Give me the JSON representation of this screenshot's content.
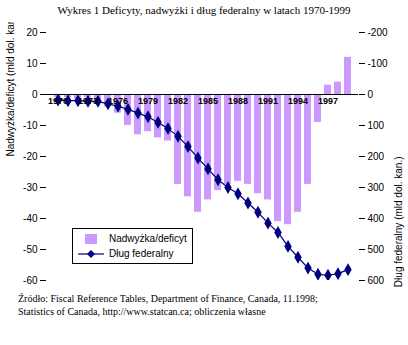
{
  "chart_data": {
    "type": "bar",
    "title": "Wykres 1 Deficyty, nadwyżki i dług federalny w latach 1970-1999",
    "y_label": "Nadwyżka/deficyt (mld dol. kan.)",
    "y2_label": "Dług federalny (mld dol. kan.)",
    "caption": [
      "Źródło: Fiscal Reference Tables, Department of Finance, Canada, 11.1998;",
      "Statistics of Canada, http://www.statcan.ca; obliczenia własne"
    ],
    "categories": [
      "1970",
      null,
      null,
      "1973",
      null,
      null,
      "1976",
      null,
      null,
      "1979",
      null,
      null,
      "1982",
      null,
      null,
      "1985",
      null,
      null,
      "1988",
      null,
      null,
      "1991",
      null,
      null,
      "1994",
      null,
      null,
      "1997",
      null,
      null
    ],
    "series": [
      {
        "name": "Nadwyżka/deficyt",
        "type": "bar",
        "color": "#cc99ff",
        "values": [
          -1,
          -1,
          -1.5,
          -1,
          -2,
          -4,
          -6,
          -10,
          -13,
          -12,
          -14,
          -15,
          -29,
          -33,
          -38,
          -34,
          -31,
          -29,
          -28,
          -29,
          -32,
          -34,
          -41,
          -42,
          -38,
          -29,
          -9,
          3,
          4,
          12
        ]
      },
      {
        "name": "Dług federalny",
        "type": "line",
        "color": "#000080",
        "marker": "diamond",
        "axis": "y2",
        "values": [
          18,
          20,
          20,
          22,
          22,
          30,
          38,
          48,
          60,
          72,
          90,
          110,
          135,
          168,
          205,
          240,
          275,
          300,
          320,
          350,
          380,
          415,
          445,
          490,
          525,
          560,
          580,
          583,
          578,
          565
        ]
      }
    ],
    "ylim": [
      -60,
      20
    ],
    "yticks": [
      -60,
      -50,
      -40,
      -30,
      -20,
      -10,
      0,
      10,
      20
    ],
    "y2lim": [
      600,
      -200
    ],
    "y2ticks": [
      -200,
      -100,
      0,
      100,
      200,
      300,
      400,
      500,
      600
    ],
    "legend": "lower left",
    "grid": false
  }
}
